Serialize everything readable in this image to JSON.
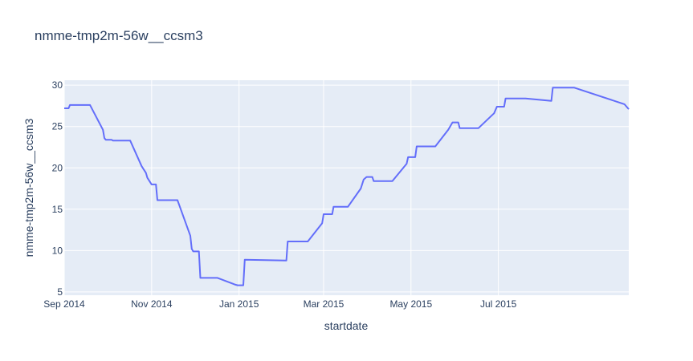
{
  "chart_data": {
    "type": "line",
    "title": "nmme-tmp2m-56w__ccsm3",
    "xlabel": "startdate",
    "ylabel": "nmme-tmp2m-56w__ccsm3",
    "xlim": [
      "2014-09-01",
      "2015-09-30"
    ],
    "ylim": [
      4.6,
      30.6
    ],
    "x_ticks": [
      {
        "date": "2014-09-01",
        "label": "Sep 2014"
      },
      {
        "date": "2014-11-01",
        "label": "Nov 2014"
      },
      {
        "date": "2015-01-01",
        "label": "Jan 2015"
      },
      {
        "date": "2015-03-01",
        "label": "Mar 2015"
      },
      {
        "date": "2015-05-01",
        "label": "May 2015"
      },
      {
        "date": "2015-07-01",
        "label": "Jul 2015"
      }
    ],
    "y_ticks": [
      5,
      10,
      15,
      20,
      25,
      30
    ],
    "grid": true,
    "line_color": "#636efa",
    "background_color": "#e5ecf6",
    "series": [
      {
        "x": [
          "2014-09-01",
          "2014-09-04",
          "2014-09-05",
          "2014-09-19",
          "2014-09-28",
          "2014-09-29",
          "2014-09-30",
          "2014-10-04",
          "2014-10-05",
          "2014-10-17",
          "2014-10-25",
          "2014-10-28",
          "2014-10-29",
          "2014-11-01",
          "2014-11-04",
          "2014-11-05",
          "2014-11-19",
          "2014-11-28",
          "2014-11-29",
          "2014-11-30",
          "2014-12-04",
          "2014-12-05",
          "2014-12-17",
          "2014-12-29",
          "2014-12-31",
          "2015-01-04",
          "2015-01-05",
          "2015-02-03",
          "2015-02-04",
          "2015-02-18",
          "2015-02-28",
          "2015-03-01",
          "2015-03-07",
          "2015-03-08",
          "2015-03-18",
          "2015-03-27",
          "2015-03-29",
          "2015-03-31",
          "2015-04-04",
          "2015-04-05",
          "2015-04-18",
          "2015-04-28",
          "2015-04-29",
          "2015-05-04",
          "2015-05-05",
          "2015-05-18",
          "2015-05-27",
          "2015-05-30",
          "2015-06-03",
          "2015-06-04",
          "2015-06-17",
          "2015-06-28",
          "2015-06-30",
          "2015-07-05",
          "2015-07-06",
          "2015-07-20",
          "2015-08-07",
          "2015-08-08",
          "2015-08-23",
          "2015-09-27",
          "2015-09-30"
        ],
        "y": [
          27.2,
          27.2,
          27.6,
          27.6,
          24.6,
          23.6,
          23.4,
          23.4,
          23.3,
          23.3,
          20.2,
          19.4,
          18.8,
          18.0,
          18.0,
          16.1,
          16.1,
          11.8,
          10.2,
          9.9,
          9.9,
          6.7,
          6.7,
          5.9,
          5.8,
          5.8,
          8.9,
          8.8,
          11.1,
          11.1,
          13.3,
          14.4,
          14.4,
          15.3,
          15.3,
          17.5,
          18.6,
          18.9,
          18.9,
          18.4,
          18.4,
          20.5,
          21.3,
          21.3,
          22.6,
          22.6,
          24.6,
          25.5,
          25.5,
          24.8,
          24.8,
          26.6,
          27.4,
          27.4,
          28.4,
          28.4,
          28.1,
          29.7,
          29.7,
          27.7,
          27.1
        ]
      }
    ]
  }
}
